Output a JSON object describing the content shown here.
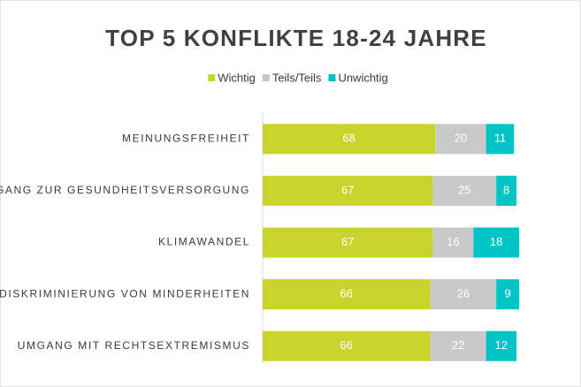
{
  "chart_data": {
    "type": "stacked-bar-horizontal",
    "title": "TOP 5 KONFLIKTE 18-24 JAHRE",
    "categories": [
      "MEINUNGSFREIHEIT",
      "ZUGANG ZUR GESUNDHEITSVERSORGUNG",
      "KLIMAWANDEL",
      "DISKRIMINIERUNG VON MINDERHEITEN",
      "UMGANG MIT RECHTSEXTREMISMUS"
    ],
    "series": [
      {
        "name": "Wichtig",
        "color": "#c8d42c",
        "values": [
          68,
          67,
          67,
          66,
          66
        ]
      },
      {
        "name": "Teils/Teils",
        "color": "#c9c9c9",
        "values": [
          20,
          25,
          16,
          26,
          22
        ]
      },
      {
        "name": "Unwichtig",
        "color": "#00c3c6",
        "values": [
          11,
          8,
          18,
          9,
          12
        ]
      }
    ],
    "legend": "top"
  }
}
